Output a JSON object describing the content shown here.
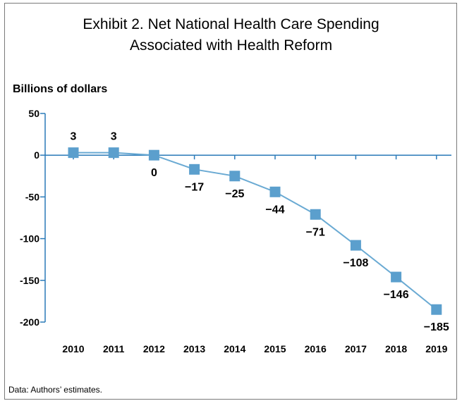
{
  "chart_data": {
    "type": "line",
    "title": [
      "Exhibit 2. Net National Health Care Spending",
      "Associated with Health Reform"
    ],
    "ylabel": "Billions of dollars",
    "xlabel": "",
    "x": [
      "2010",
      "2011",
      "2012",
      "2013",
      "2014",
      "2015",
      "2016",
      "2017",
      "2018",
      "2019"
    ],
    "series": [
      {
        "name": "",
        "values": [
          3,
          3,
          0,
          -17,
          -25,
          -44,
          -71,
          -108,
          -146,
          -185
        ],
        "labels": [
          "3",
          "3",
          "0",
          "−17",
          "−25",
          "−44",
          "−71",
          "−108",
          "−146",
          "−185"
        ]
      }
    ],
    "ylim": [
      -200,
      50
    ],
    "yticks": [
      50,
      0,
      -50,
      -100,
      -150,
      -200
    ],
    "ytick_labels": [
      "50",
      "0",
      "-50",
      "-100",
      "-150",
      "-200"
    ],
    "grid": false,
    "legend": "none",
    "colors": {
      "line": "#6aaad3",
      "marker": "#5b9fcd",
      "axis": "#2a7ab8"
    }
  },
  "footnote": "Data: Authors’ estimates."
}
